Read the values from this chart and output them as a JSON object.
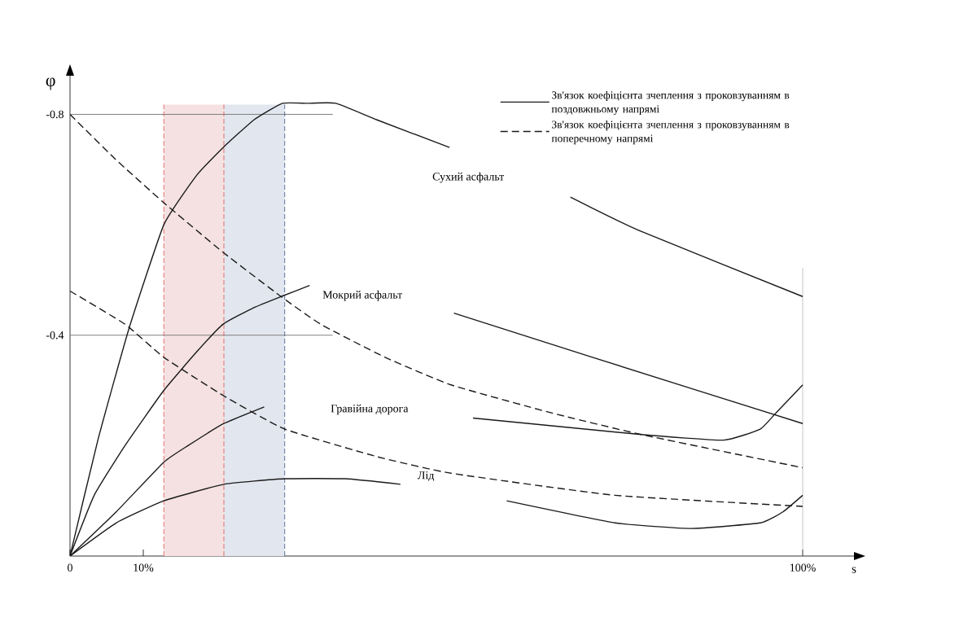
{
  "chart_data": {
    "type": "line",
    "xlabel": "s",
    "ylabel": "φ",
    "xlim": [
      0,
      107
    ],
    "ylim": [
      0,
      -0.87
    ],
    "xticks": [
      0,
      {
        "value": 10,
        "label": "10%"
      },
      {
        "value": 100,
        "label": "100%"
      }
    ],
    "yticks": [
      -0.4,
      -0.8
    ],
    "legend": "top right",
    "series": [
      {
        "name": "Зв'язок коефіцієнта зчеплення з проковзуванням в поздовжньому напрямі",
        "color": "#1a1a1a",
        "line_style": "solid",
        "x": [
          0,
          3.8,
          8.0,
          12.8,
          17.3,
          20.9,
          25.1,
          29.0,
          32.4,
          36.3,
          41.9,
          51.8,
          60,
          68.3,
          77.6,
          100
        ],
        "values": [
          0,
          -0.21,
          -0.41,
          -0.6,
          -0.69,
          -0.74,
          -0.79,
          -0.82,
          -0.82,
          -0.82,
          -0.79,
          -0.74,
          null,
          -0.65,
          -0.59,
          -0.47
        ]
      },
      {
        "color": "#1a1a1a",
        "line_style": "solid",
        "x": [
          0,
          3.3,
          7.5,
          12.8,
          17.3,
          20.9,
          25.1,
          28.8,
          32.7,
          40,
          52.4,
          71.3,
          100
        ],
        "values": [
          0,
          -0.11,
          -0.2,
          -0.3,
          -0.37,
          -0.42,
          -0.45,
          -0.47,
          -0.49,
          null,
          -0.44,
          -0.36,
          -0.24
        ]
      },
      {
        "color": "#1a1a1a",
        "line_style": "solid",
        "x": [
          0,
          6.3,
          12.8,
          16.1,
          21.0,
          26.5,
          45,
          55.0,
          78.0,
          89.2,
          94.2,
          96.4,
          100
        ],
        "values": [
          0,
          -0.08,
          -0.17,
          -0.2,
          -0.24,
          -0.27,
          null,
          -0.25,
          -0.22,
          -0.21,
          -0.23,
          -0.26,
          -0.31
        ]
      },
      {
        "color": "#1a1a1a",
        "line_style": "solid",
        "x": [
          0,
          6.3,
          12.8,
          21.0,
          29.3,
          37.6,
          45.1,
          50,
          59.6,
          74.4,
          84.8,
          94.2,
          97.3,
          100
        ],
        "values": [
          0,
          -0.06,
          -0.1,
          -0.13,
          -0.14,
          -0.14,
          -0.13,
          null,
          -0.1,
          -0.06,
          -0.05,
          -0.06,
          -0.08,
          -0.11
        ]
      },
      {
        "name": "Зв'язок коефіцієнта зчеплення з проковзуванням в поперечному напрямі",
        "color": "#1a1a1a",
        "line_style": "dashed",
        "x": [
          0,
          6.1,
          12.8,
          20.9,
          28.8,
          34.2,
          43.0,
          52.0,
          65.5,
          78.0,
          100
        ],
        "values": [
          -0.8,
          -0.72,
          -0.64,
          -0.55,
          -0.47,
          -0.42,
          -0.36,
          -0.31,
          -0.26,
          -0.22,
          -0.16
        ]
      },
      {
        "color": "#1a1a1a",
        "line_style": "dashed",
        "x": [
          0,
          7.5,
          12.8,
          21.0,
          29.3,
          41.9,
          52.0,
          74.4,
          100
        ],
        "values": [
          -0.48,
          -0.42,
          -0.36,
          -0.29,
          -0.23,
          -0.18,
          -0.15,
          -0.11,
          -0.09
        ]
      }
    ],
    "bands": [
      {
        "axis": "x",
        "from": 12.8,
        "to": 21.0,
        "color": "#f5e1e1"
      },
      {
        "axis": "x",
        "from": 21.0,
        "to": 29.3,
        "color": "#e2e6ef"
      }
    ],
    "ref_lines": [
      {
        "axis": "y",
        "value": -0.8,
        "color": "#808080"
      },
      {
        "axis": "y",
        "value": -0.4,
        "color": "#808080"
      },
      {
        "axis": "x",
        "value": 100,
        "color": "#a0a0a0"
      },
      {
        "axis": "x",
        "value": 12.8,
        "color": "#d9534f",
        "line_style": "dashed"
      },
      {
        "axis": "x",
        "value": 21.0,
        "color": "#d9534f",
        "line_style": "dashed"
      },
      {
        "axis": "x",
        "value": 29.3,
        "color": "#3b4f86",
        "line_style": "dashed"
      }
    ],
    "annotations": [
      "Сухий асфальт",
      "Мокрий асфальт",
      "Гравійна дорога",
      "Лід"
    ]
  }
}
